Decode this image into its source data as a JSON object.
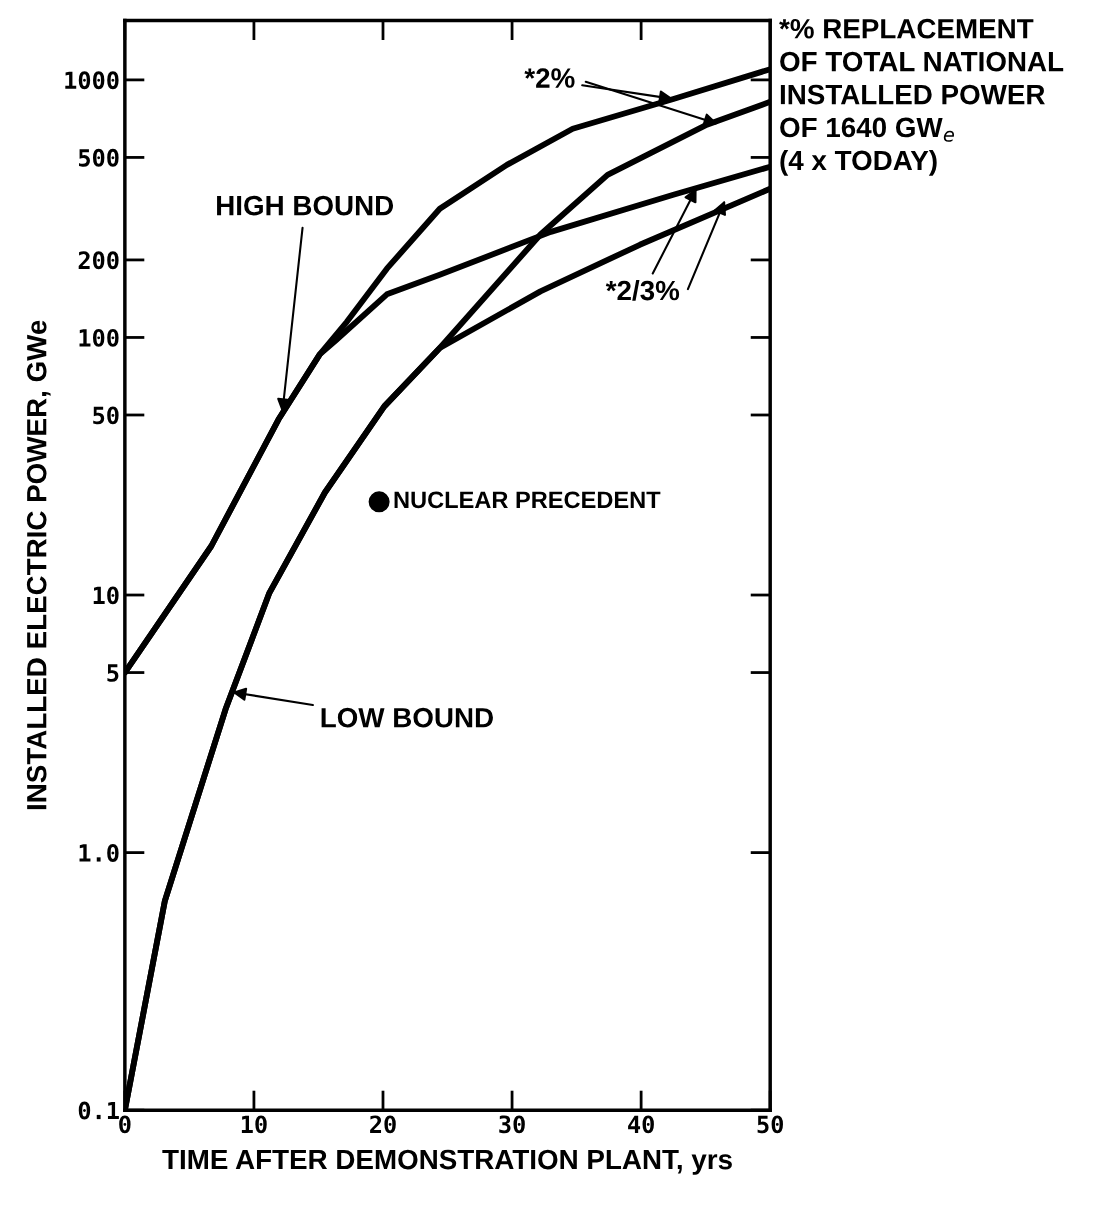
{
  "chart_data": {
    "type": "line",
    "xlabel": "TIME AFTER DEMONSTRATION PLANT, yrs",
    "ylabel": "INSTALLED ELECTRIC POWER, GWe",
    "log": "y",
    "xlim": [
      0,
      50
    ],
    "ylim": [
      0.1,
      1700
    ],
    "xticks": [
      0,
      10,
      20,
      30,
      40,
      50
    ],
    "yticks": [
      {
        "value": 0.1,
        "label": "0.1"
      },
      {
        "value": 1,
        "label": "1.0"
      },
      5,
      10,
      50,
      100,
      200,
      500,
      1000
    ],
    "grid": false,
    "marker": "none",
    "line_style": "solid",
    "series": [
      {
        "color": "#000000",
        "x": [
          0,
          6.7,
          11.9,
          15.1,
          17.2,
          20.3,
          24.4,
          29.6,
          34.7,
          42.5,
          50
        ],
        "values": [
          5,
          15.5,
          48,
          86,
          115,
          185,
          316,
          468,
          646,
          843,
          1100
        ]
      },
      {
        "color": "#000000",
        "x": [
          0,
          6.7,
          11.9,
          15.1,
          16.4,
          20.3,
          24.4,
          33,
          42.5,
          50
        ],
        "values": [
          5,
          15.5,
          48,
          86,
          98,
          147,
          175,
          257,
          358,
          460
        ]
      },
      {
        "color": "#000000",
        "x": [
          0,
          3.1,
          7.8,
          11.2,
          15.5,
          20.1,
          24.4,
          32.2,
          37.4,
          45.1,
          50
        ],
        "values": [
          0.1,
          0.65,
          3.6,
          10.2,
          25,
          54,
          91,
          251,
          428,
          670,
          822
        ]
      },
      {
        "color": "#000000",
        "x": [
          0,
          3.1,
          7.8,
          11.2,
          15.5,
          20.1,
          24.4,
          32.2,
          39.9,
          50
        ],
        "values": [
          0.1,
          0.65,
          3.6,
          10.2,
          25,
          54,
          91,
          151,
          229,
          378
        ]
      },
      {
        "type": "scatter",
        "name": "NUCLEAR PRECEDENT",
        "color": "#000000",
        "marker": "circle",
        "x": [
          19.7
        ],
        "values": [
          23
        ]
      }
    ],
    "annotations": [
      {
        "text": "HIGH BOUND",
        "x": 12.2,
        "y": 51
      },
      {
        "text": "LOW BOUND",
        "x": 8.3,
        "y": 4.2
      },
      {
        "text": "*2%",
        "x": 42.5,
        "y": 843
      },
      {
        "text": "*2/3%",
        "x": 44.3,
        "y": 381
      },
      "*% REPLACEMENT\nOF TOTAL NATIONAL\nINSTALLED POWER\nOF 1640 GW$_{e}$\n(4 x TODAY)"
    ]
  }
}
